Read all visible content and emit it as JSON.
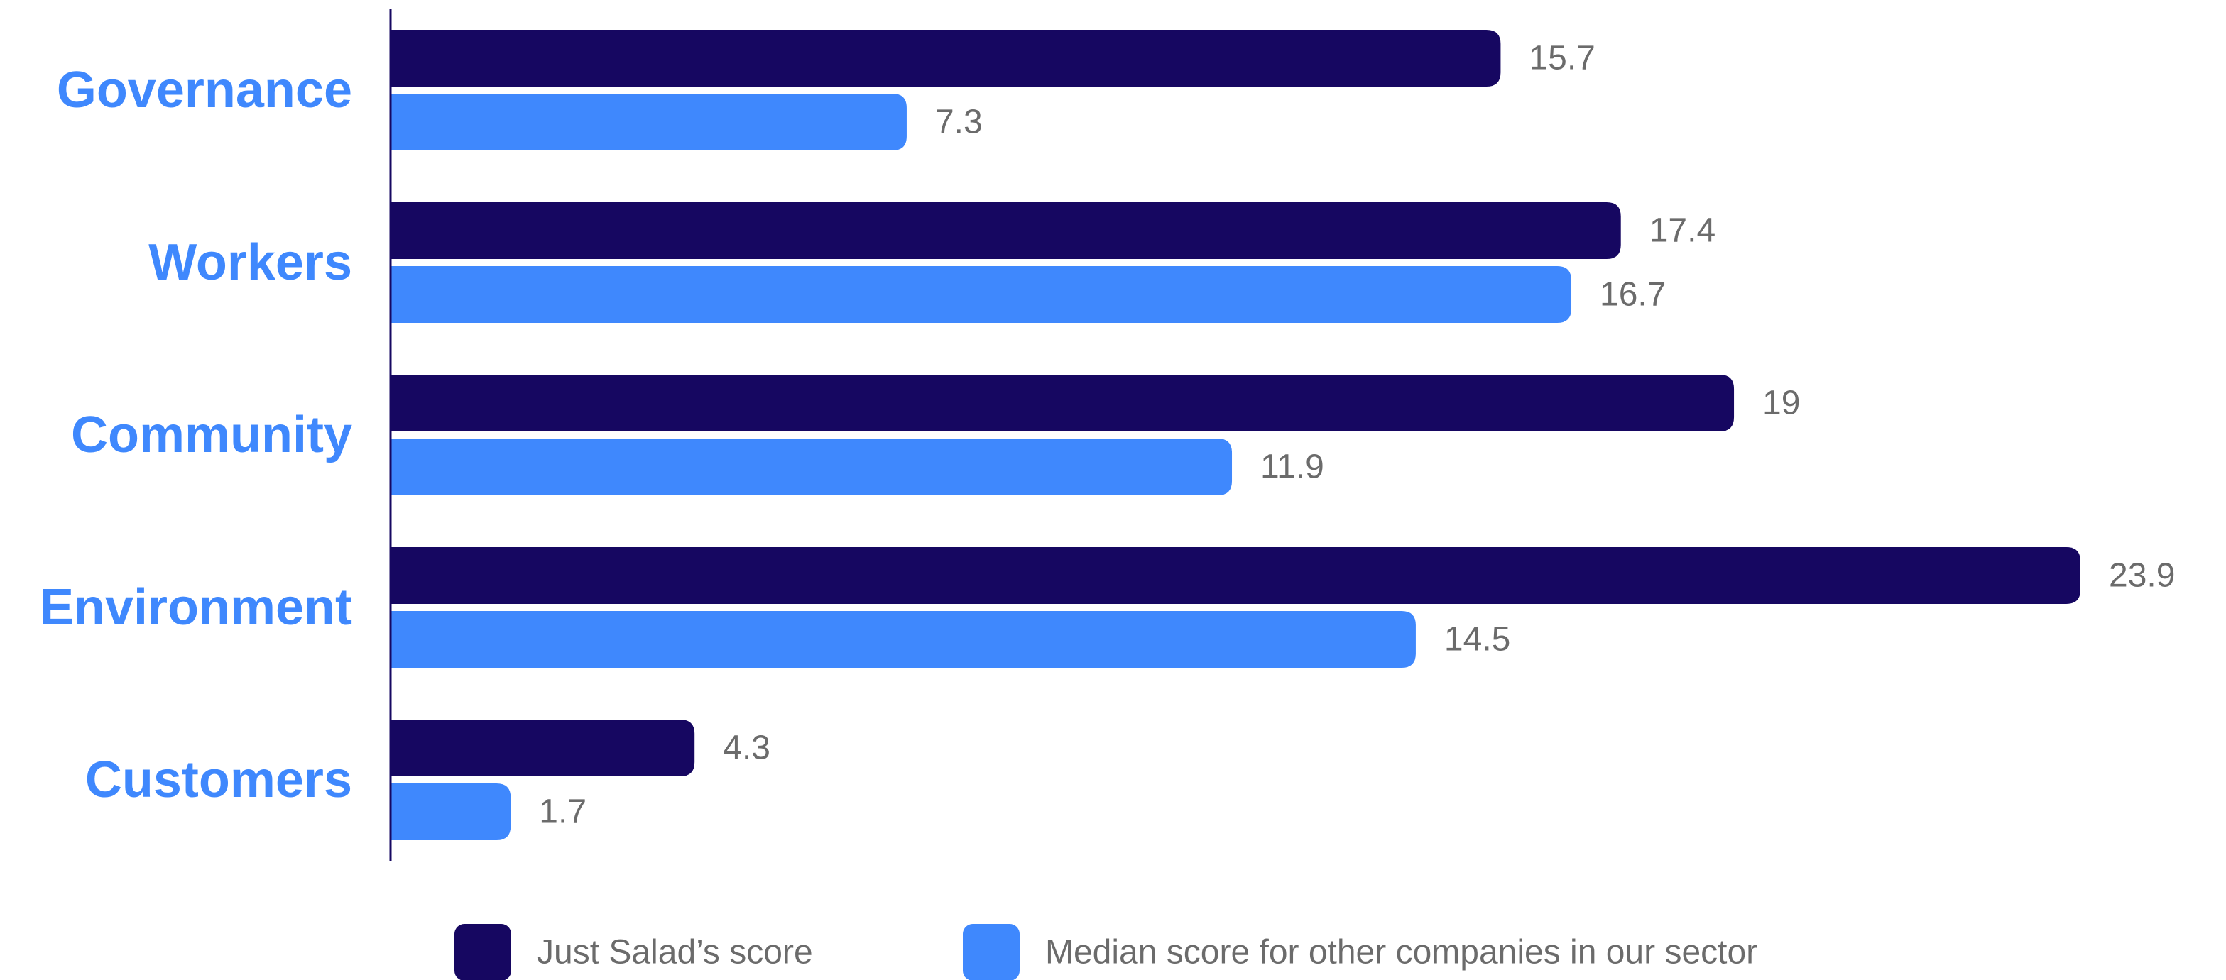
{
  "chart_data": {
    "type": "bar",
    "orientation": "horizontal",
    "categories": [
      "Governance",
      "Workers",
      "Community",
      "Environment",
      "Customers"
    ],
    "series": [
      {
        "name": "Just Salad’s score",
        "values": [
          15.7,
          17.4,
          19,
          23.9,
          4.3
        ],
        "labels": [
          "15.7",
          "17.4",
          "19",
          "23.9",
          "4.3"
        ],
        "color": "#160761"
      },
      {
        "name": "Median score for other companies in our sector",
        "values": [
          7.3,
          16.7,
          11.9,
          14.5,
          1.7
        ],
        "labels": [
          "7.3",
          "16.7",
          "11.9",
          "14.5",
          "1.7"
        ],
        "color": "#3f88fd"
      }
    ],
    "xlim": [
      0,
      23.9
    ],
    "grid": false,
    "legend_position": "bottom",
    "title": "",
    "xlabel": "",
    "ylabel": ""
  },
  "colors": {
    "category_label": "#3f88fd",
    "value_label": "#6b6b6b",
    "legend_text": "#6b6b6b",
    "axis_line": "#160761",
    "background": "#ffffff"
  }
}
